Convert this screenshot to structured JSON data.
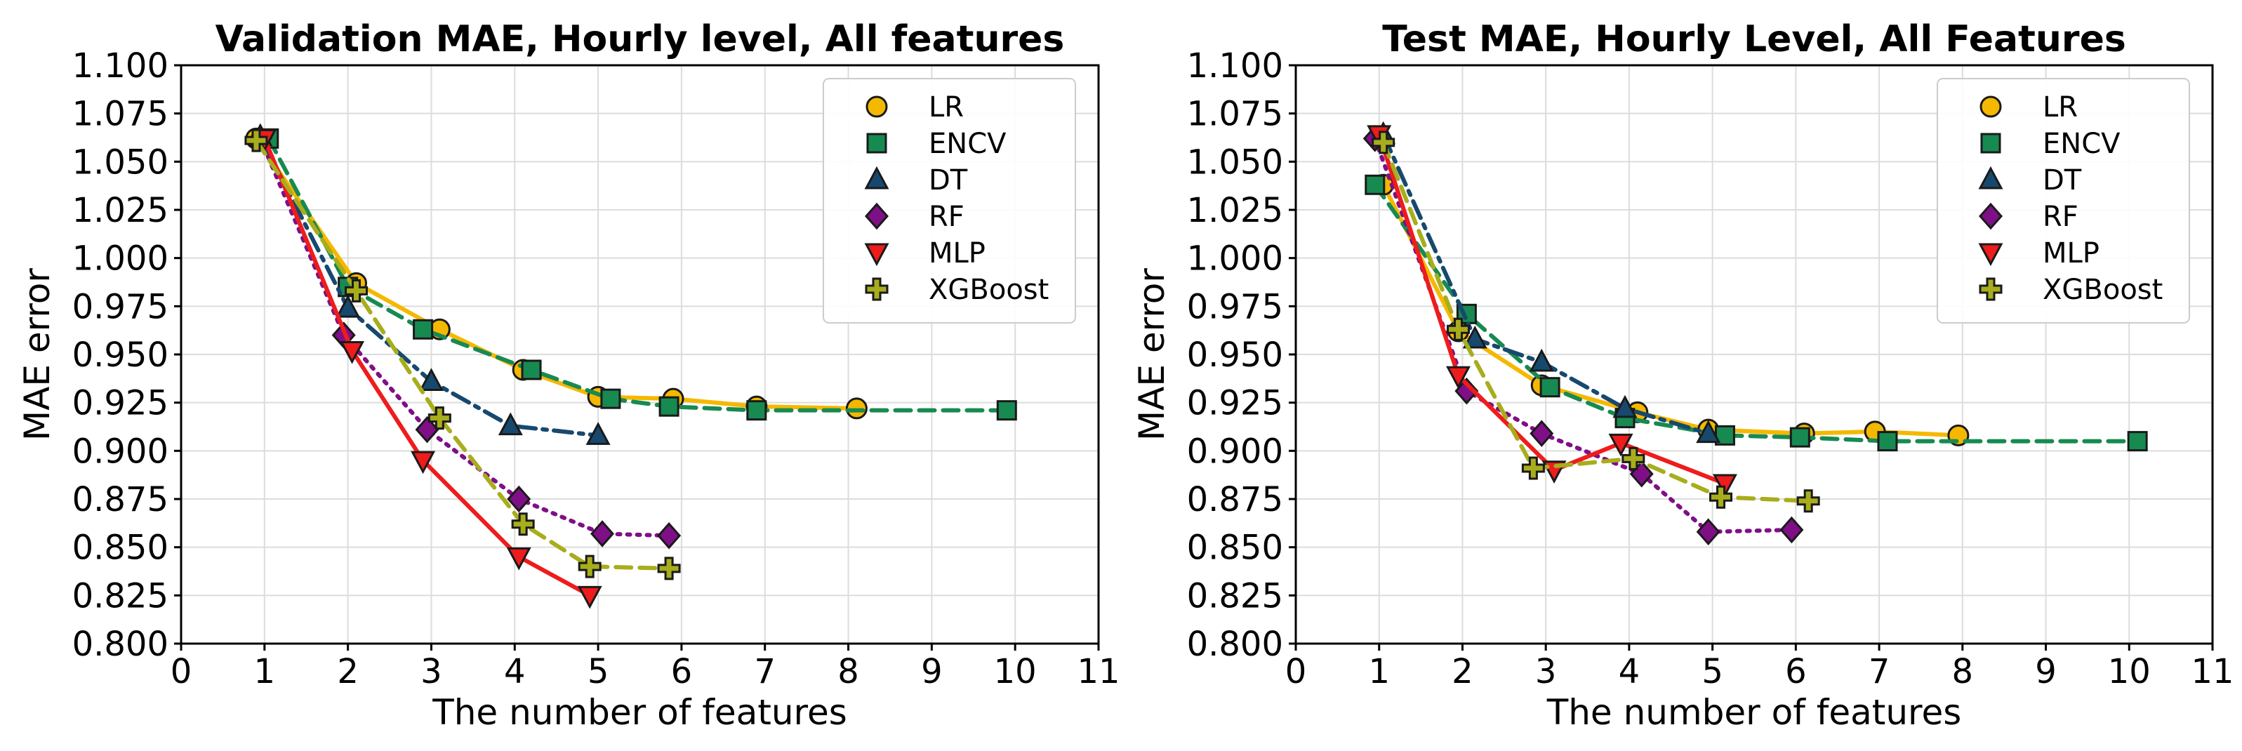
{
  "chart_data": [
    {
      "type": "line",
      "title": "Validation MAE, Hourly level, All features",
      "xlabel": "The number of features",
      "ylabel": "MAE error",
      "xlim": [
        0,
        11
      ],
      "ylim": [
        0.8,
        1.1
      ],
      "x_ticks": [
        "0",
        "1",
        "2",
        "3",
        "4",
        "5",
        "6",
        "7",
        "8",
        "9",
        "10",
        "11"
      ],
      "y_ticks": [
        "0.800",
        "0.825",
        "0.850",
        "0.875",
        "0.900",
        "0.925",
        "0.950",
        "0.975",
        "1.000",
        "1.025",
        "1.050",
        "1.075",
        "1.100"
      ],
      "grid": true,
      "legend_position": "top-right",
      "series": [
        {
          "name": "LR",
          "color": "#f5b800",
          "marker": "circle",
          "line": "solid",
          "x": [
            0.9,
            2.1,
            3.1,
            4.1,
            5.0,
            5.9,
            6.9,
            8.1
          ],
          "y": [
            1.062,
            0.987,
            0.963,
            0.942,
            0.928,
            0.927,
            0.923,
            0.922
          ]
        },
        {
          "name": "ENCV",
          "color": "#178a51",
          "marker": "square",
          "line": "dashed",
          "x": [
            1.05,
            2.0,
            2.9,
            4.2,
            5.15,
            5.85,
            6.9,
            9.9
          ],
          "y": [
            1.062,
            0.985,
            0.963,
            0.942,
            0.927,
            0.923,
            0.921,
            0.921
          ]
        },
        {
          "name": "DT",
          "color": "#17496e",
          "marker": "triangle-up",
          "line": "dashdot",
          "x": [
            0.95,
            2.0,
            3.0,
            3.95,
            5.0
          ],
          "y": [
            1.063,
            0.974,
            0.936,
            0.913,
            0.908
          ]
        },
        {
          "name": "RF",
          "color": "#7f0f87",
          "marker": "diamond",
          "line": "dotted",
          "x": [
            0.95,
            1.95,
            2.95,
            4.05,
            5.05,
            5.85
          ],
          "y": [
            1.062,
            0.96,
            0.911,
            0.875,
            0.857,
            0.856
          ]
        },
        {
          "name": "MLP",
          "color": "#ee1c1c",
          "marker": "triangle-down",
          "line": "solid",
          "x": [
            1.0,
            2.05,
            2.9,
            4.05,
            4.9
          ],
          "y": [
            1.062,
            0.952,
            0.895,
            0.845,
            0.825
          ]
        },
        {
          "name": "XGBoost",
          "color": "#a8ad1c",
          "marker": "plus",
          "line": "dashed",
          "x": [
            0.9,
            2.1,
            3.1,
            4.1,
            4.9,
            5.85
          ],
          "y": [
            1.061,
            0.983,
            0.917,
            0.862,
            0.84,
            0.839
          ]
        }
      ]
    },
    {
      "type": "line",
      "title": "Test MAE, Hourly Level, All Features",
      "xlabel": "The number of features",
      "ylabel": "MAE error",
      "xlim": [
        0,
        11
      ],
      "ylim": [
        0.8,
        1.1
      ],
      "x_ticks": [
        "0",
        "1",
        "2",
        "3",
        "4",
        "5",
        "6",
        "7",
        "8",
        "9",
        "10",
        "11"
      ],
      "y_ticks": [
        "0.800",
        "0.825",
        "0.850",
        "0.875",
        "0.900",
        "0.925",
        "0.950",
        "0.975",
        "1.000",
        "1.025",
        "1.050",
        "1.075",
        "1.100"
      ],
      "grid": true,
      "legend_position": "top-right",
      "series": [
        {
          "name": "LR",
          "color": "#f5b800",
          "marker": "circle",
          "line": "solid",
          "x": [
            1.05,
            1.95,
            2.95,
            4.1,
            4.95,
            6.1,
            6.95,
            7.95
          ],
          "y": [
            1.038,
            0.962,
            0.934,
            0.92,
            0.911,
            0.909,
            0.91,
            0.908
          ]
        },
        {
          "name": "ENCV",
          "color": "#178a51",
          "marker": "square",
          "line": "dashed",
          "x": [
            0.95,
            2.05,
            3.05,
            3.95,
            5.15,
            6.05,
            7.1,
            10.1
          ],
          "y": [
            1.038,
            0.971,
            0.933,
            0.917,
            0.908,
            0.907,
            0.905,
            0.905
          ]
        },
        {
          "name": "DT",
          "color": "#17496e",
          "marker": "triangle-up",
          "line": "dashdot",
          "x": [
            1.05,
            2.15,
            2.95,
            3.95,
            4.95
          ],
          "y": [
            1.064,
            0.958,
            0.946,
            0.922,
            0.909
          ]
        },
        {
          "name": "RF",
          "color": "#7f0f87",
          "marker": "diamond",
          "line": "dotted",
          "x": [
            0.95,
            2.05,
            2.95,
            4.15,
            4.95,
            5.95
          ],
          "y": [
            1.062,
            0.931,
            0.909,
            0.888,
            0.858,
            0.859
          ]
        },
        {
          "name": "MLP",
          "color": "#ee1c1c",
          "marker": "triangle-down",
          "line": "solid",
          "x": [
            1.0,
            1.95,
            3.1,
            3.9,
            5.15
          ],
          "y": [
            1.064,
            0.939,
            0.89,
            0.904,
            0.883
          ]
        },
        {
          "name": "XGBoost",
          "color": "#a8ad1c",
          "marker": "plus",
          "line": "dashed",
          "x": [
            1.05,
            1.95,
            2.85,
            4.05,
            5.1,
            6.15
          ],
          "y": [
            1.06,
            0.963,
            0.891,
            0.896,
            0.876,
            0.874
          ]
        }
      ]
    }
  ]
}
